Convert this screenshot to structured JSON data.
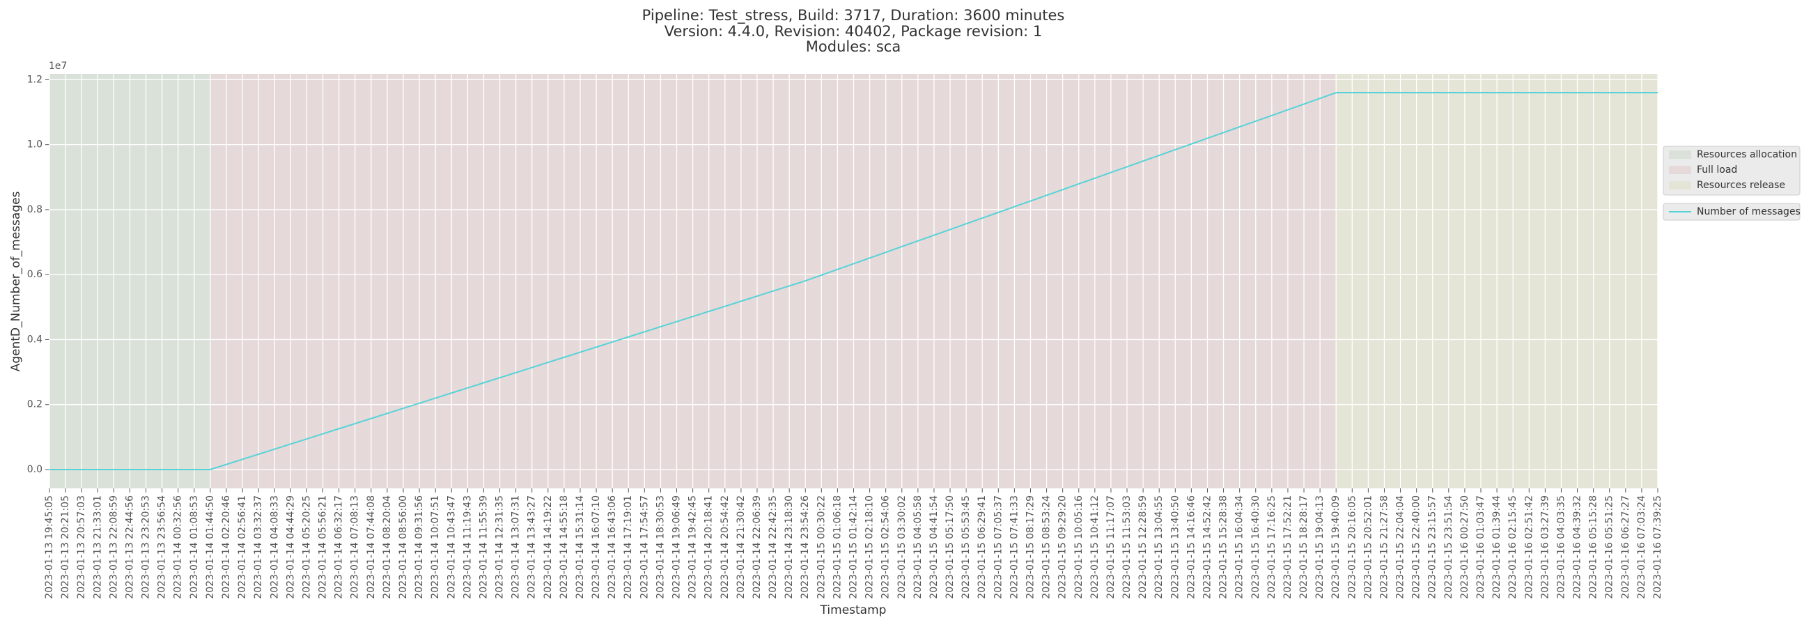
{
  "chart_data": {
    "type": "line",
    "title_lines": [
      "Pipeline: Test_stress, Build: 3717, Duration: 3600 minutes",
      "Version: 4.4.0, Revision: 40402, Package revision: 1",
      "Modules: sca"
    ],
    "x_label": "Timestamp",
    "y_label": "AgentD_Number_of_messages",
    "y_offset_label": "1e7",
    "categories": [
      "2023-01-13 19:45:05",
      "2023-01-13 20:21:05",
      "2023-01-13 20:57:03",
      "2023-01-13 21:33:01",
      "2023-01-13 22:08:59",
      "2023-01-13 22:44:56",
      "2023-01-13 23:20:53",
      "2023-01-13 23:56:54",
      "2023-01-14 00:32:56",
      "2023-01-14 01:08:53",
      "2023-01-14 01:44:50",
      "2023-01-14 02:20:46",
      "2023-01-14 02:56:41",
      "2023-01-14 03:32:37",
      "2023-01-14 04:08:33",
      "2023-01-14 04:44:29",
      "2023-01-14 05:20:25",
      "2023-01-14 05:56:21",
      "2023-01-14 06:32:17",
      "2023-01-14 07:08:13",
      "2023-01-14 07:44:08",
      "2023-01-14 08:20:04",
      "2023-01-14 08:56:00",
      "2023-01-14 09:31:56",
      "2023-01-14 10:07:51",
      "2023-01-14 10:43:47",
      "2023-01-14 11:19:43",
      "2023-01-14 11:55:39",
      "2023-01-14 12:31:35",
      "2023-01-14 13:07:31",
      "2023-01-14 13:43:27",
      "2023-01-14 14:19:22",
      "2023-01-14 14:55:18",
      "2023-01-14 15:31:14",
      "2023-01-14 16:07:10",
      "2023-01-14 16:43:06",
      "2023-01-14 17:19:01",
      "2023-01-14 17:54:57",
      "2023-01-14 18:30:53",
      "2023-01-14 19:06:49",
      "2023-01-14 19:42:45",
      "2023-01-14 20:18:41",
      "2023-01-14 20:54:42",
      "2023-01-14 21:30:42",
      "2023-01-14 22:06:39",
      "2023-01-14 22:42:35",
      "2023-01-14 23:18:30",
      "2023-01-14 23:54:26",
      "2023-01-15 00:30:22",
      "2023-01-15 01:06:18",
      "2023-01-15 01:42:14",
      "2023-01-15 02:18:10",
      "2023-01-15 02:54:06",
      "2023-01-15 03:30:02",
      "2023-01-15 04:05:58",
      "2023-01-15 04:41:54",
      "2023-01-15 05:17:50",
      "2023-01-15 05:53:45",
      "2023-01-15 06:29:41",
      "2023-01-15 07:05:37",
      "2023-01-15 07:41:33",
      "2023-01-15 08:17:29",
      "2023-01-15 08:53:24",
      "2023-01-15 09:29:20",
      "2023-01-15 10:05:16",
      "2023-01-15 10:41:12",
      "2023-01-15 11:17:07",
      "2023-01-15 11:53:03",
      "2023-01-15 12:28:59",
      "2023-01-15 13:04:55",
      "2023-01-15 13:40:50",
      "2023-01-15 14:16:46",
      "2023-01-15 14:52:42",
      "2023-01-15 15:28:38",
      "2023-01-15 16:04:34",
      "2023-01-15 16:40:30",
      "2023-01-15 17:16:25",
      "2023-01-15 17:52:21",
      "2023-01-15 18:28:17",
      "2023-01-15 19:04:13",
      "2023-01-15 19:40:09",
      "2023-01-15 20:16:05",
      "2023-01-15 20:52:01",
      "2023-01-15 21:27:58",
      "2023-01-15 22:04:04",
      "2023-01-15 22:40:00",
      "2023-01-15 23:15:57",
      "2023-01-15 23:51:54",
      "2023-01-16 00:27:50",
      "2023-01-16 01:03:47",
      "2023-01-16 01:39:44",
      "2023-01-16 02:15:45",
      "2023-01-16 02:51:42",
      "2023-01-16 03:27:39",
      "2023-01-16 04:03:35",
      "2023-01-16 04:39:32",
      "2023-01-16 05:15:28",
      "2023-01-16 05:51:25",
      "2023-01-16 06:27:27",
      "2023-01-16 07:03:24",
      "2023-01-16 07:39:25"
    ],
    "series": [
      {
        "name": "Number of messages",
        "color": "#57d3d8",
        "values": [
          0,
          0,
          0,
          0,
          0,
          0,
          0,
          0,
          0,
          0,
          0,
          157000,
          314000,
          471000,
          628000,
          785000,
          942000,
          1099000,
          1256000,
          1413000,
          1570000,
          1727000,
          1884000,
          2041000,
          2198000,
          2355000,
          2512000,
          2669000,
          2826000,
          2983000,
          3140000,
          3297000,
          3454000,
          3611000,
          3768000,
          3925000,
          4082000,
          4239000,
          4396000,
          4553000,
          4710000,
          4867000,
          5024000,
          5181000,
          5338000,
          5495000,
          5652000,
          5809000,
          5984500,
          6160000,
          6335500,
          6511000,
          6686500,
          6862000,
          7037500,
          7213000,
          7388500,
          7564000,
          7739500,
          7915000,
          8090500,
          8266000,
          8441500,
          8617000,
          8792500,
          8968000,
          9143500,
          9319000,
          9494500,
          9670000,
          9845500,
          10021000,
          10196500,
          10372000,
          10547500,
          10723000,
          10898500,
          11074000,
          11249500,
          11425000,
          11600500,
          11600500,
          11600500,
          11600500,
          11600500,
          11600500,
          11600500,
          11600500,
          11600500,
          11600500,
          11600500,
          11600500,
          11600500,
          11600500,
          11600500,
          11600500,
          11600500,
          11600500,
          11600500,
          11600500,
          11600500
        ]
      }
    ],
    "phases": [
      {
        "name": "Resources allocation",
        "color": "#d9e1d9",
        "start": "2023-01-13 19:45:05",
        "end": "2023-01-14 01:44:50"
      },
      {
        "name": "Full load",
        "color": "#e6d9d9",
        "start": "2023-01-14 01:44:50",
        "end": "2023-01-15 19:40:09"
      },
      {
        "name": "Resources release",
        "color": "#e4e5d7",
        "start": "2023-01-15 19:40:09",
        "end": "2023-01-16 07:39:25"
      }
    ],
    "ylim": [
      -580000,
      12180000
    ],
    "yticks": [
      {
        "value": 0,
        "label": "0.0"
      },
      {
        "value": 2000000,
        "label": "0.2"
      },
      {
        "value": 4000000,
        "label": "0.4"
      },
      {
        "value": 6000000,
        "label": "0.6"
      },
      {
        "value": 8000000,
        "label": "0.8"
      },
      {
        "value": 10000000,
        "label": "1.0"
      },
      {
        "value": 12000000,
        "label": "1.2"
      }
    ],
    "grid": true,
    "legend": "right"
  }
}
